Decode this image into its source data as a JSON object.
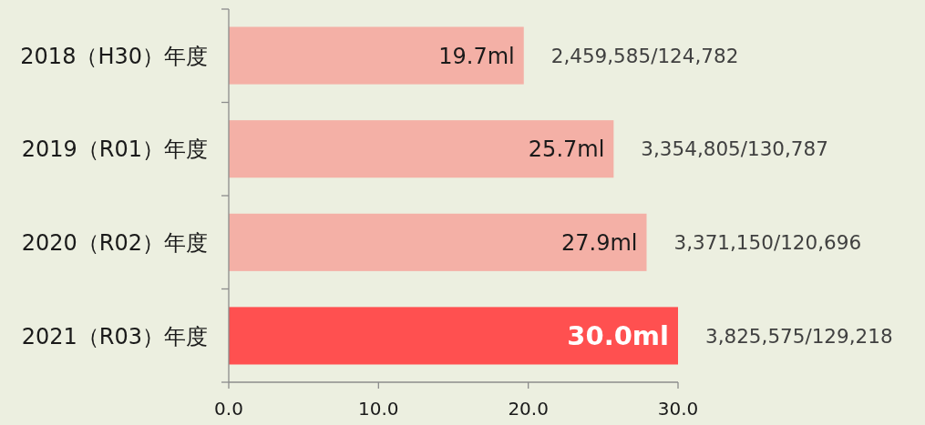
{
  "chart_data": {
    "type": "bar",
    "orientation": "horizontal",
    "categories": [
      "2018（H30）年度",
      "2019（R01）年度",
      "2020（R02）年度",
      "2021（R03）年度"
    ],
    "values": [
      19.7,
      25.7,
      27.9,
      30.0
    ],
    "colors": [
      "#f4b0a6",
      "#f4b0a6",
      "#f4b0a6",
      "#ff5050"
    ],
    "value_labels": [
      "19.7ml",
      "25.7ml",
      "27.9ml",
      "30.0ml"
    ],
    "xlim": [
      0,
      30
    ],
    "xticks": [
      {
        "value": 0,
        "label": "0.0"
      },
      {
        "value": 10,
        "label": "10.0"
      },
      {
        "value": 20,
        "label": "20.0"
      },
      {
        "value": 30,
        "label": "30.0"
      }
    ],
    "annotations": [
      {
        "text": "2,459,585/124,782",
        "x": 19.7,
        "y": "2018（H30）年度"
      },
      {
        "text": "3,354,805/130,787",
        "x": 25.7,
        "y": "2019（R01）年度"
      },
      {
        "text": "3,371,150/120,696",
        "x": 27.9,
        "y": "2020（R02）年度"
      },
      {
        "text": "3,825,575/129,218",
        "x": 30.0,
        "y": "2021（R03）年度"
      }
    ]
  }
}
